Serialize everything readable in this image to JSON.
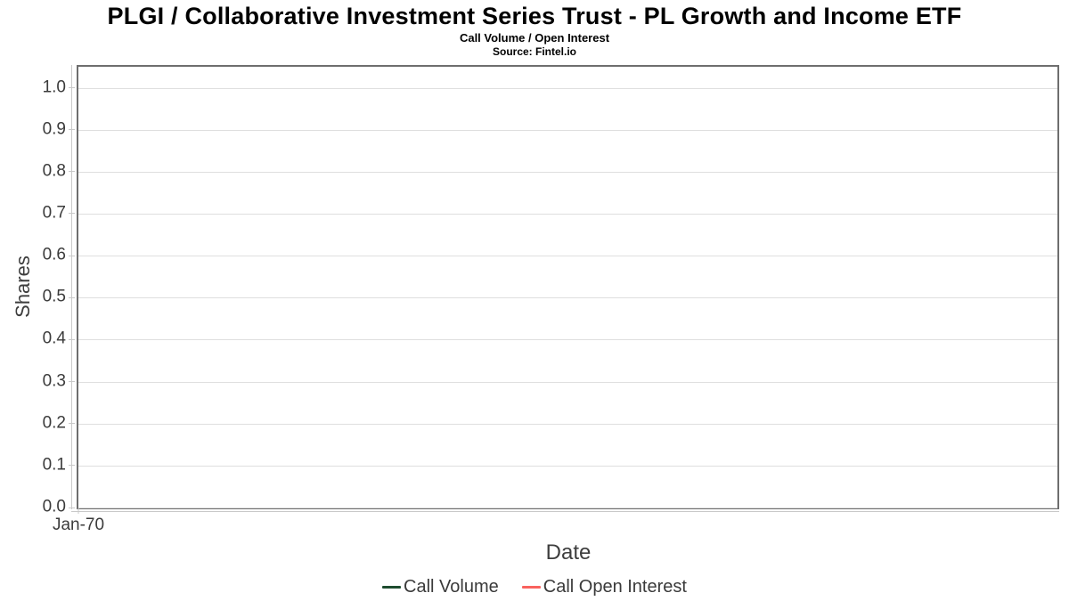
{
  "header": {
    "title": "PLGI / Collaborative Investment Series Trust - PL Growth and Income ETF",
    "subtitle": "Call Volume / Open Interest",
    "source": "Source: Fintel.io"
  },
  "chart_data": {
    "type": "line",
    "title": "PLGI / Collaborative Investment Series Trust - PL Growth and Income ETF",
    "subtitle": "Call Volume / Open Interest",
    "source": "Source: Fintel.io",
    "xlabel": "Date",
    "ylabel": "Shares",
    "ylim": [
      0.0,
      1.05
    ],
    "yticks": [
      "0.0",
      "0.1",
      "0.2",
      "0.3",
      "0.4",
      "0.5",
      "0.6",
      "0.7",
      "0.8",
      "0.9",
      "1.0"
    ],
    "xticks": [
      {
        "label": "Jan-70",
        "position": 0.0
      }
    ],
    "grid": "horizontal gridlines at every 0.1",
    "legend_position": "bottom-center",
    "plot_is_empty": true,
    "series": [
      {
        "name": "Call Volume",
        "color": "#1e4c2f",
        "x": [],
        "values": []
      },
      {
        "name": "Call Open Interest",
        "color": "#f9625e",
        "x": [],
        "values": []
      }
    ]
  },
  "colors": {
    "plot_border": "#6e6e6e",
    "gridline": "#dfdfdf",
    "axis_line": "#c9c9c9",
    "tick_text": "#3b3b3b",
    "axis_title_text": "#3d3d3d",
    "call_volume_green": "#1e4c2f",
    "call_open_interest_red": "#f9625e"
  }
}
